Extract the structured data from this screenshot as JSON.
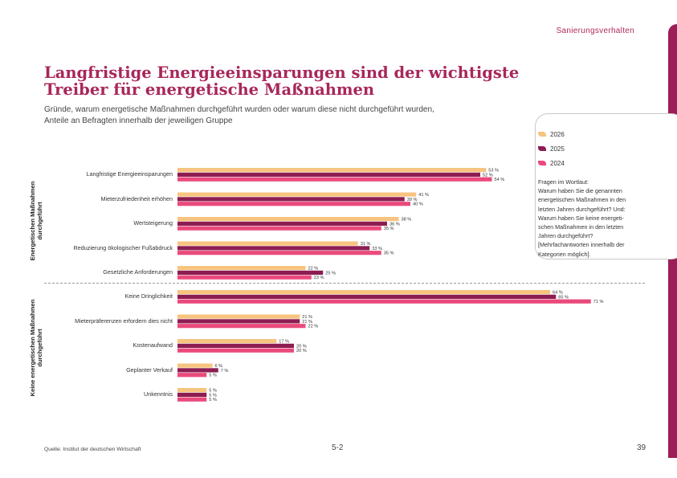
{
  "header": {
    "section": "Sanierungsverhalten"
  },
  "title_line1": "Langfristige Energieeinsparungen sind der wichtigste",
  "title_line2": "Treiber für energetische Maßnahmen",
  "subtitle_line1": "Gründe, warum energetische Maßnahmen durchgeführt wurden oder warum diese nicht durchgeführt wurden,",
  "subtitle_line2": "Anteile an Befragten innerhalb der jeweiligen Gruppe",
  "legend": [
    {
      "label": "2026",
      "color": "#f7c480"
    },
    {
      "label": "2025",
      "color": "#8c1d52"
    },
    {
      "label": "2024",
      "color": "#ea4a7c"
    }
  ],
  "note_lines": [
    "Fragen im Wortlaut:",
    "Warum haben Sie die genannten",
    "energetischen Maßnahmen in den",
    "letzten Jahren durchgeführt? Und:",
    "Warum haben Sie keine energeti-",
    "schen Maßnahmen in den letzten",
    "Jahren durchgeführt?",
    "[Mehrfachantworten innerhalb der",
    "Kategorien möglich]."
  ],
  "group_labels": {
    "group1_line1": "Energetischen Maßnahmen",
    "group1_line2": "durchgeführt",
    "group2_line1": "Keine energetischen Maßnahmen",
    "group2_line2": "durchgeführt"
  },
  "chart_data": {
    "type": "bar",
    "orientation": "horizontal",
    "unit": "%",
    "xlim": [
      0,
      71
    ],
    "series_names": [
      "2026",
      "2025",
      "2024"
    ],
    "groups": [
      {
        "name": "Energetischen Maßnahmen durchgeführt",
        "categories": [
          {
            "label": "Langfristige Energieeinsparungen",
            "values": [
              53,
              52,
              54
            ]
          },
          {
            "label": "Mieterzufriedenheit erhöhen",
            "values": [
              41,
              39,
              40
            ]
          },
          {
            "label": "Wertsteigerung",
            "values": [
              38,
              36,
              35
            ]
          },
          {
            "label": "Reduzierung ökologischer Fußabdruck",
            "values": [
              31,
              33,
              35
            ]
          },
          {
            "label": "Gesetzliche Anforderungen",
            "values": [
              22,
              25,
              23
            ]
          }
        ]
      },
      {
        "name": "Keine energetischen Maßnahmen durchgeführt",
        "categories": [
          {
            "label": "Keine Dringlichkeit",
            "values": [
              64,
              65,
              71
            ]
          },
          {
            "label": "Mieterpräferenzen erfordern dies nicht",
            "values": [
              21,
              21,
              22
            ]
          },
          {
            "label": "Kostenaufwand",
            "values": [
              17,
              20,
              20
            ]
          },
          {
            "label": "Geplanter Verkauf",
            "values": [
              6,
              7,
              5
            ]
          },
          {
            "label": "Unkenntnis",
            "values": [
              5,
              5,
              5
            ]
          }
        ]
      }
    ]
  },
  "footer": {
    "source": "Quelle: Institut der deutschen Wirtschaft",
    "chapter": "5-2",
    "page": "39"
  }
}
